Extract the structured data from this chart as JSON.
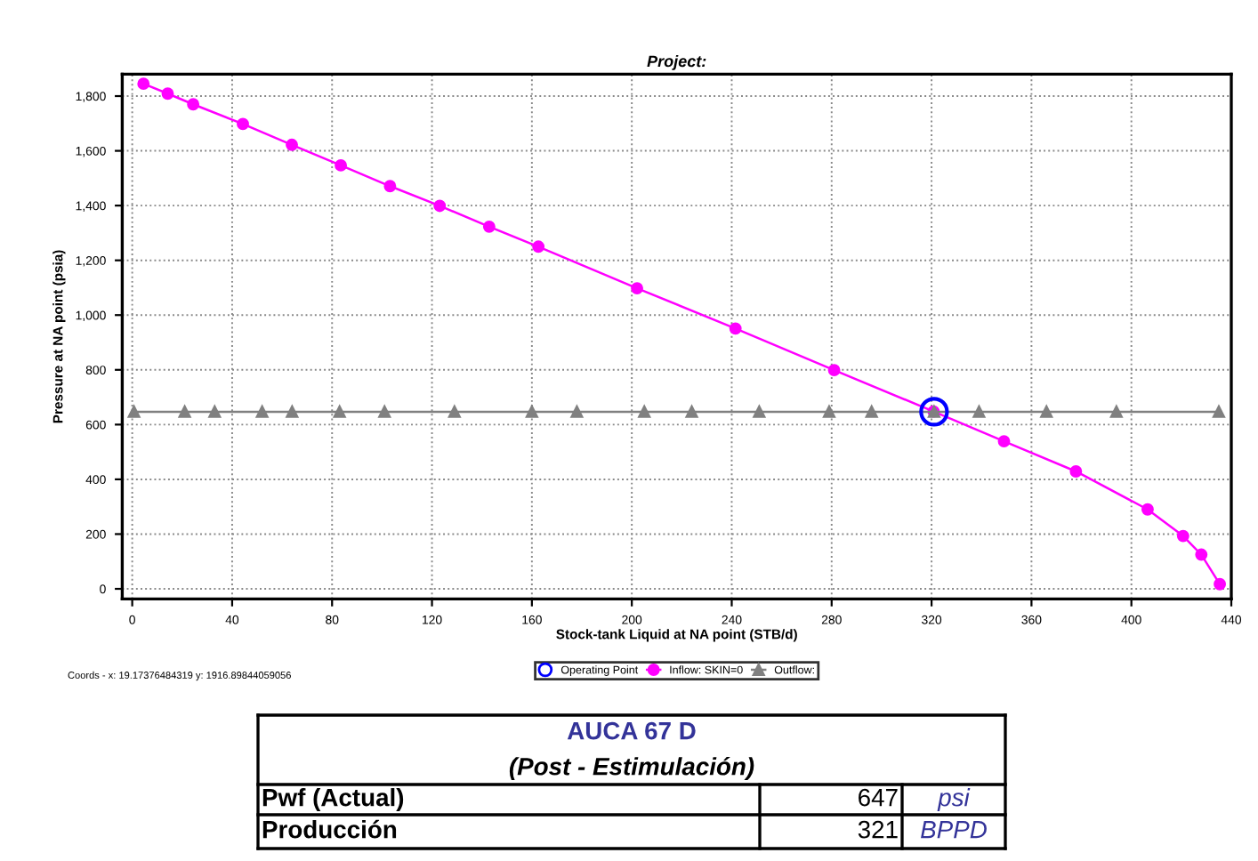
{
  "chart_data": {
    "type": "line",
    "title": "Project:",
    "xlabel": "Stock-tank Liquid at NA point (STB/d)",
    "ylabel": "Pressure at NA point (psia)",
    "xlim": [
      -4,
      440
    ],
    "xticks": [
      0,
      40,
      80,
      120,
      160,
      200,
      240,
      280,
      320,
      360,
      400,
      440
    ],
    "ylim": [
      -37,
      1880
    ],
    "yticks": [
      0,
      200,
      400,
      600,
      800,
      {
        "value": 1000,
        "label": "1,000"
      },
      {
        "value": 1200,
        "label": "1,200"
      },
      {
        "value": 1400,
        "label": "1,400"
      },
      {
        "value": 1600,
        "label": "1,600"
      },
      {
        "value": 1800,
        "label": "1,800"
      }
    ],
    "grid": true,
    "legend": "bottom",
    "series": [
      {
        "name": "Operating Point",
        "type": "scatter",
        "marker": "circle",
        "color": "#0000ff",
        "x": [
          321
        ],
        "values": [
          647
        ]
      },
      {
        "name": "Inflow: SKIN=0",
        "marker": "circle",
        "color": "#ff00ff",
        "x": [
          4.5,
          14.2,
          24.4,
          44.3,
          63.9,
          83.5,
          103.2,
          123.1,
          142.9,
          162.6,
          202.1,
          241.5,
          281,
          320.8,
          349,
          377.8,
          406.5,
          420.7,
          428,
          435.4
        ],
        "values": [
          1845,
          1809,
          1770,
          1698,
          1622,
          1547,
          1471,
          1399,
          1323,
          1250,
          1098,
          951,
          799,
          648,
          539,
          429,
          290,
          193,
          125,
          17
        ]
      },
      {
        "name": "Outflow:",
        "marker": "triangle",
        "color": "#808080",
        "x": [
          0.7,
          21,
          33,
          52,
          64,
          83,
          101,
          129,
          160,
          178,
          205,
          224,
          251,
          279,
          296,
          321,
          339,
          366,
          394,
          435
        ],
        "values": [
          647,
          647,
          647,
          647,
          647,
          647,
          647,
          647,
          647,
          647,
          647,
          647,
          647,
          647,
          647,
          647,
          647,
          647,
          647,
          647
        ]
      }
    ],
    "annotations": [
      "Coords - x: 19.17376484319 y: 1916.89844059056",
      "AUCA 67 D",
      "(Post - Estimulación)",
      "Pwf (Actual)",
      "647",
      "psi",
      "Producción",
      "321",
      "BPPD"
    ]
  }
}
